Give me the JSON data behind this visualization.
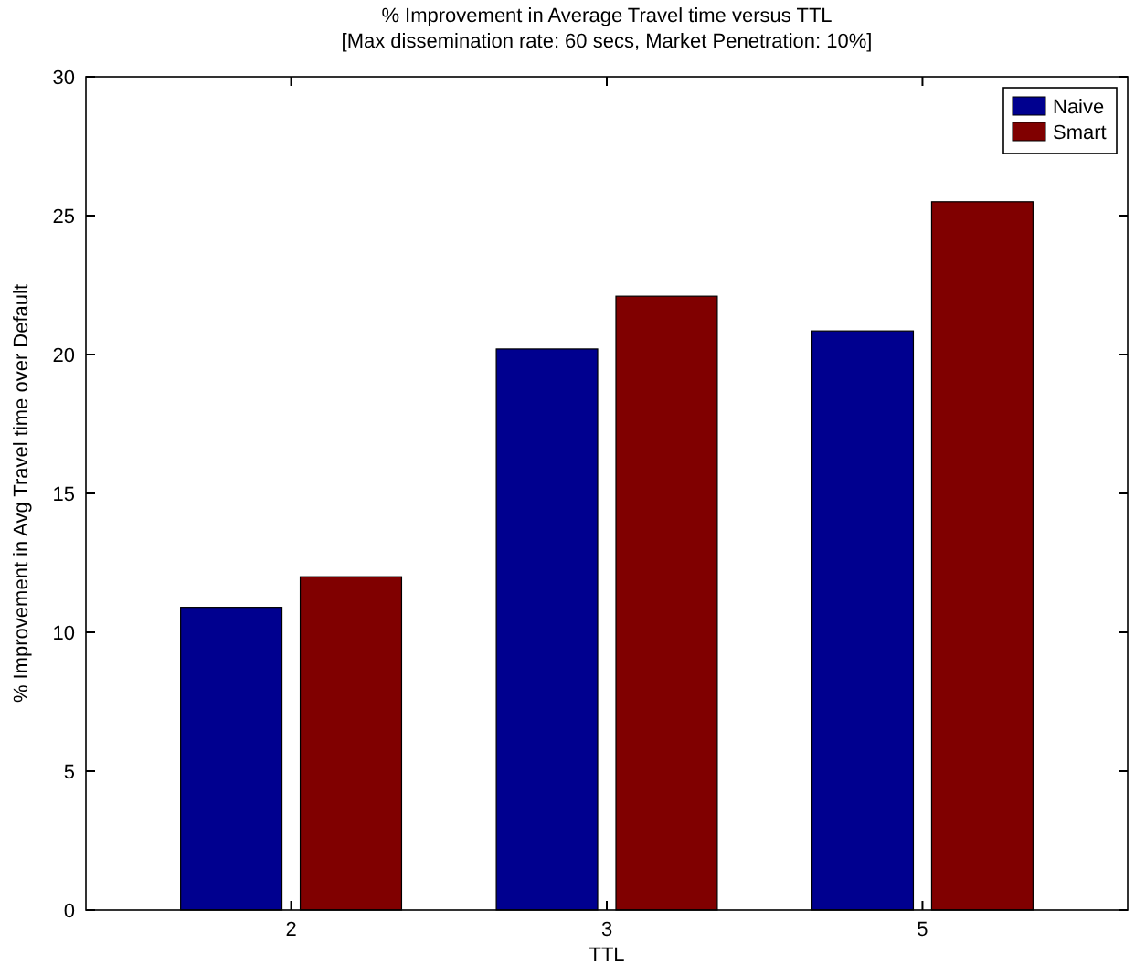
{
  "chart_data": {
    "type": "bar",
    "title": "% Improvement in Average Travel time versus TTL",
    "subtitle": "[Max dissemination rate: 60 secs, Market Penetration: 10%]",
    "xlabel": "TTL",
    "ylabel": "% Improvement in Avg Travel time over Default",
    "categories": [
      "2",
      "3",
      "5"
    ],
    "series": [
      {
        "name": "Naive",
        "color": "#00008f",
        "values": [
          10.9,
          20.2,
          20.85
        ]
      },
      {
        "name": "Smart",
        "color": "#800000",
        "values": [
          12,
          22.1,
          25.5
        ]
      }
    ],
    "ylim": [
      0,
      30
    ],
    "yticks": [
      0,
      5,
      10,
      15,
      20,
      25,
      30
    ],
    "grid": false,
    "legend": "top right"
  }
}
